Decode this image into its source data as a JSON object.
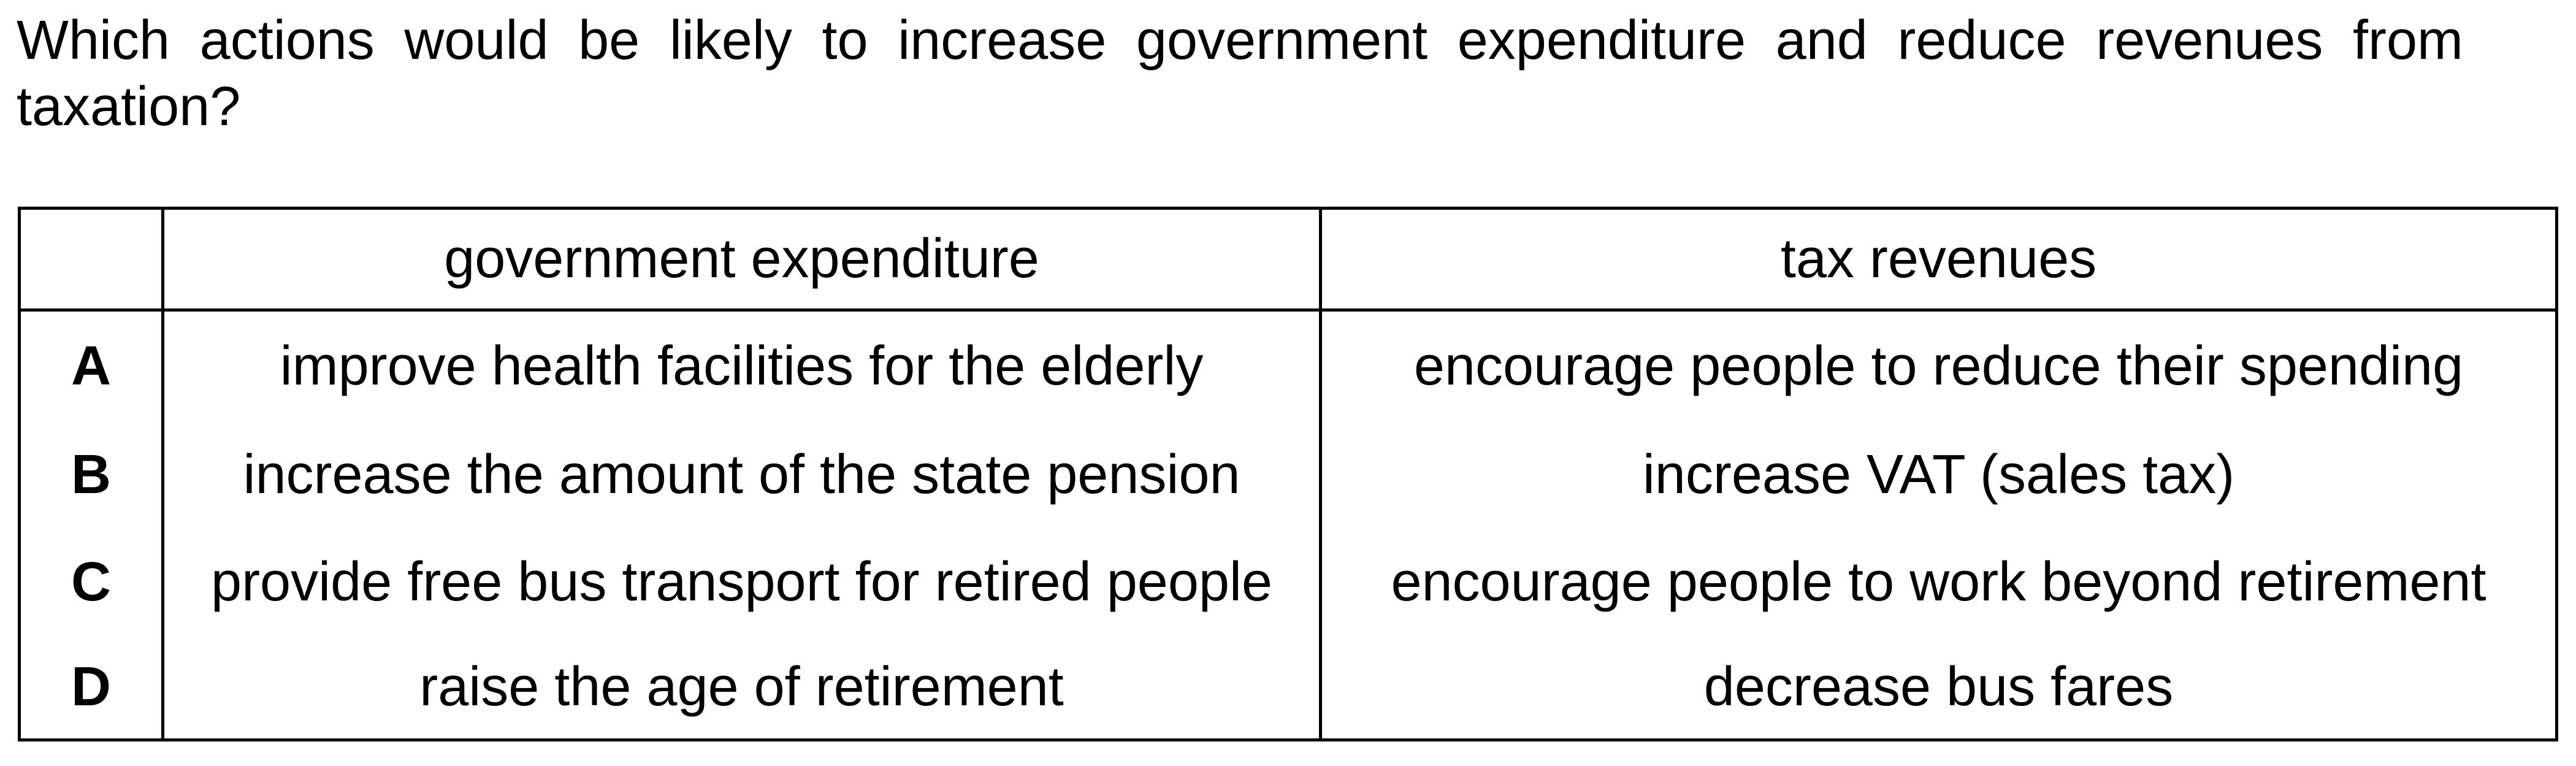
{
  "question": "Which actions would be likely to increase government expenditure and reduce revenues from taxation?",
  "table": {
    "headers": [
      "",
      "government expenditure",
      "tax revenues"
    ],
    "rows": [
      {
        "letter": "A",
        "expenditure": "improve health facilities for the elderly",
        "tax": "encourage people to reduce their spending"
      },
      {
        "letter": "B",
        "expenditure": "increase the amount of the state pension",
        "tax": "increase VAT (sales tax)"
      },
      {
        "letter": "C",
        "expenditure": "provide free bus transport for retired people",
        "tax": "encourage people to work beyond retirement"
      },
      {
        "letter": "D",
        "expenditure": "raise the age of retirement",
        "tax": "decrease bus fares"
      }
    ]
  }
}
